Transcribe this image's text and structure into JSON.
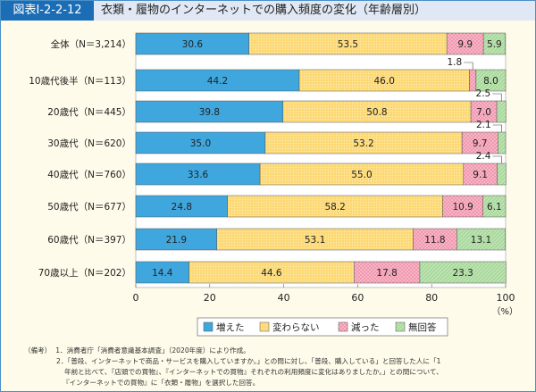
{
  "header": {
    "figure_number": "図表Ⅰ-2-2-12",
    "title": "衣類・履物のインターネットでの購入頻度の変化（年齢層別）"
  },
  "chart_data": {
    "type": "bar",
    "orientation": "horizontal",
    "stacked": true,
    "categories": [
      "全体（N＝3,214）",
      "10歳代後半（N＝113）",
      "20歳代（N＝445）",
      "30歳代（N＝620）",
      "40歳代（N＝760）",
      "50歳代（N＝677）",
      "60歳代（N＝397）",
      "70歳以上（N＝202）"
    ],
    "series": [
      {
        "name": "増えた",
        "color": "#3fa7dd",
        "values": [
          30.6,
          44.2,
          39.8,
          35.0,
          33.6,
          24.8,
          21.9,
          14.4
        ]
      },
      {
        "name": "変わらない",
        "color": "#fdd66e",
        "values": [
          53.5,
          46.0,
          50.8,
          53.2,
          55.0,
          58.2,
          53.1,
          44.6
        ]
      },
      {
        "name": "減った",
        "color": "#f6b6c6",
        "values": [
          9.9,
          1.8,
          7.0,
          9.7,
          9.1,
          10.9,
          11.8,
          17.8
        ]
      },
      {
        "name": "無回答",
        "color": "#a9d99c",
        "values": [
          5.9,
          8.0,
          2.5,
          2.1,
          2.4,
          6.1,
          13.1,
          23.3
        ]
      }
    ],
    "xlim": [
      0,
      100
    ],
    "xticks": [
      0,
      20,
      40,
      60,
      80,
      100
    ],
    "xunit": "（%）",
    "legend": "bottom",
    "grid": false
  },
  "notes": {
    "label": "（備考）",
    "lines": [
      "1．消費者庁「消費者意識基本調査」（2020年度）により作成。",
      "2．「普段、インターネットで商品・サービスを購入していますか。」との問に対し、「普段、購入している」と回答した人に「1",
      "年前と比べて、『店頭での買物』、『インターネットでの買物』それぞれの利用頻度に変化はありましたか。」との問について、",
      "『インターネットでの買物』に「衣類・履物」を選択した回答。"
    ]
  }
}
